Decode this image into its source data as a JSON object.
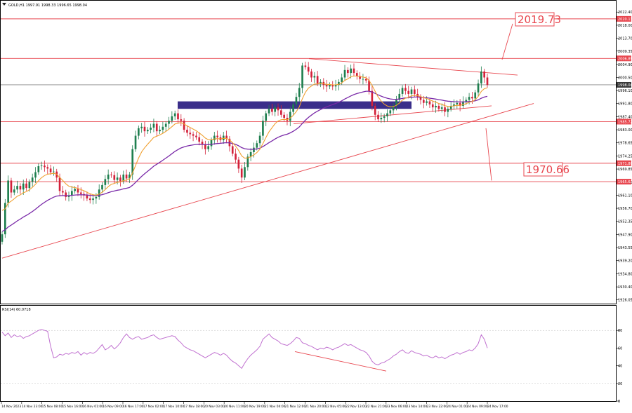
{
  "header": {
    "symbol_info": "GOLD,H1  1997.91 1998.33 1996.65 1998.04",
    "icon": "triangle-down-icon"
  },
  "colors": {
    "candle_up": "#1f7f4f",
    "candle_down": "#d3213a",
    "ma_fast": "#f0a030",
    "ma_slow": "#7a2aa8",
    "level_line": "#e8474f",
    "trend_line": "#e8474f",
    "zone": "#3a2e8a",
    "rsi": "#c070d0",
    "price_tag": "#e8474f"
  },
  "annotations": {
    "target_high": "2019.73",
    "target_low": "1970.66"
  },
  "chart_data": [
    {
      "type": "candlestick",
      "title": "GOLD,H1",
      "ylim": [
        1925.5,
        2025.5
      ],
      "y_ticks": [
        "2022.40",
        "2018.00",
        "2013.70",
        "2009.35",
        "2004.90",
        "2000.50",
        "1996.10",
        "1991.80",
        "1987.40",
        "1983.00",
        "1978.65",
        "1974.25",
        "1969.85",
        "1965.45",
        "1961.10",
        "1956.70",
        "1952.35",
        "1947.90",
        "1943.55",
        "1939.20",
        "1934.80",
        "1930.40",
        "1926.05"
      ],
      "price_labels": [
        "2020.13",
        "2006.89",
        "1998.04",
        "1985.72",
        "1971.80",
        "1965.62"
      ],
      "x_ticks": [
        "14 Nov 2023",
        "14 Nov 23:00",
        "15 Nov 08:00",
        "15 Nov 16:00",
        "16 Nov 01:00",
        "16 Nov 09:00",
        "16 Nov 17:00",
        "17 Nov 02:00",
        "17 Nov 10:00",
        "17 Nov 18:00",
        "20 Nov 03:00",
        "20 Nov 11:00",
        "20 Nov 19:00",
        "21 Nov 04:00",
        "21 Nov 12:00",
        "21 Nov 20:00",
        "22 Nov 05:00",
        "22 Nov 13:00",
        "22 Nov 21:00",
        "23 Nov 06:00",
        "23 Nov 14:00",
        "23 Nov 22:00",
        "24 Nov 01:00",
        "24 Nov 09:00",
        "24 Nov 17:00"
      ],
      "close": [
        1948.0,
        1958.5,
        1966.0,
        1962.0,
        1963.0,
        1964.2,
        1963.0,
        1965.0,
        1963.5,
        1965.5,
        1967.0,
        1968.8,
        1970.8,
        1971.0,
        1970.5,
        1970.0,
        1968.8,
        1969.0,
        1967.0,
        1962.5,
        1962.0,
        1960.5,
        1961.0,
        1962.5,
        1963.2,
        1962.0,
        1961.5,
        1961.0,
        1960.0,
        1959.5,
        1960.0,
        1960.5,
        1963.0,
        1964.5,
        1966.5,
        1968.0,
        1967.8,
        1966.2,
        1967.0,
        1965.8,
        1968.0,
        1966.7,
        1968.0,
        1976.5,
        1981.0,
        1983.5,
        1984.0,
        1982.5,
        1983.0,
        1983.7,
        1985.0,
        1982.5,
        1983.0,
        1984.0,
        1985.0,
        1986.0,
        1987.5,
        1988.5,
        1986.5,
        1986.0,
        1983.0,
        1982.0,
        1981.5,
        1981.0,
        1980.5,
        1979.0,
        1978.0,
        1976.5,
        1977.5,
        1979.5,
        1981.0,
        1980.5,
        1979.5,
        1981.0,
        1980.0,
        1977.5,
        1975.0,
        1973.0,
        1970.0,
        1967.0,
        1970.5,
        1974.0,
        1975.5,
        1977.0,
        1978.5,
        1981.0,
        1986.0,
        1988.5,
        1990.0,
        1989.0,
        1990.5,
        1989.5,
        1988.0,
        1987.0,
        1986.0,
        1989.0,
        1991.5,
        1994.0,
        1997.0,
        2004.5,
        2004.0,
        2002.5,
        2000.5,
        2001.0,
        1998.5,
        1999.0,
        1998.0,
        1997.5,
        1998.0,
        1997.5,
        1998.0,
        1999.0,
        2000.5,
        2003.0,
        2002.0,
        2003.5,
        2002.0,
        2001.0,
        2000.0,
        2000.0,
        1999.5,
        1996.0,
        1991.0,
        1988.0,
        1986.5,
        1987.0,
        1987.5,
        1988.5,
        1989.5,
        1991.0,
        1993.0,
        1995.0,
        1997.0,
        1996.0,
        1995.0,
        1996.5,
        1995.0,
        1994.0,
        1993.0,
        1992.0,
        1992.5,
        1991.5,
        1990.5,
        1991.0,
        1990.0,
        1990.5,
        1989.0,
        1990.0,
        1991.0,
        1991.5,
        1992.0,
        1991.0,
        1992.5,
        1993.0,
        1994.0,
        1993.5,
        1995.5,
        1998.5,
        2002.5,
        2000.5,
        1998.0
      ],
      "series": [
        {
          "name": "",
          "kind": "ma_fast",
          "start": 1958.0,
          "end": 1996.8
        },
        {
          "name": "",
          "kind": "ma_slow",
          "start": 1949.0,
          "end": 1994.6
        }
      ],
      "horizontal_levels": [
        2020.13,
        2006.89,
        1998.04,
        1985.72,
        1971.8,
        1965.62
      ],
      "zone": {
        "from": 1992.5,
        "to": 1990.0
      },
      "legend": "none"
    },
    {
      "type": "line",
      "title": "RSI(14) 60.0718",
      "ylim": [
        0,
        100
      ],
      "y_ticks": [
        "80",
        "60",
        "40",
        "20",
        "0"
      ],
      "values": [
        78,
        74,
        77,
        72,
        75,
        73,
        74,
        71,
        73,
        74,
        76,
        78,
        80,
        81,
        80,
        79,
        62,
        49,
        50,
        53,
        52,
        54,
        53,
        55,
        54,
        56,
        52,
        55,
        53,
        55,
        54,
        56,
        60,
        64,
        58,
        60,
        63,
        59,
        62,
        66,
        72,
        76,
        72,
        70,
        72,
        73,
        70,
        71,
        72,
        74,
        75,
        72,
        70,
        71,
        72,
        73,
        74,
        73,
        69,
        66,
        62,
        60,
        58,
        57,
        55,
        53,
        51,
        49,
        51,
        53,
        55,
        54,
        52,
        54,
        52,
        48,
        45,
        43,
        40,
        37,
        43,
        48,
        52,
        55,
        58,
        62,
        70,
        73,
        76,
        72,
        70,
        68,
        65,
        64,
        63,
        65,
        68,
        72,
        71,
        66,
        65,
        63,
        62,
        60,
        58,
        60,
        59,
        61,
        60,
        58,
        60,
        61,
        63,
        65,
        63,
        64,
        62,
        60,
        58,
        57,
        55,
        51,
        45,
        42,
        41,
        43,
        44,
        46,
        48,
        51,
        53,
        56,
        58,
        55,
        54,
        57,
        55,
        54,
        53,
        51,
        52,
        50,
        49,
        51,
        49,
        50,
        48,
        50,
        52,
        53,
        55,
        53,
        55,
        56,
        58,
        57,
        60,
        65,
        75,
        70,
        60
      ]
    }
  ]
}
